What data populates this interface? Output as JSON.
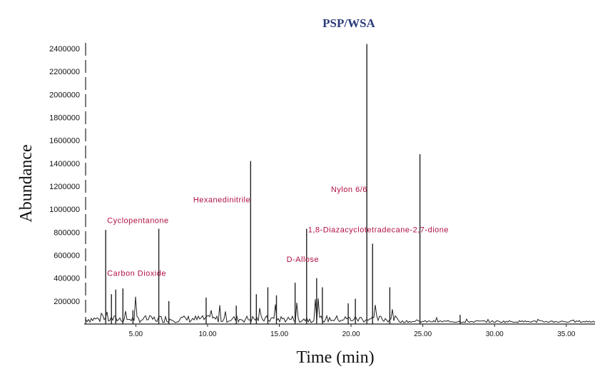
{
  "chart_data": {
    "type": "line",
    "title": "PSP/WSA",
    "xlabel": "Time (min)",
    "ylabel": "Abundance",
    "xlim": [
      1.5,
      37.0
    ],
    "ylim": [
      0,
      2450000
    ],
    "x_ticks": [
      "5.00",
      "10.00",
      "15.00",
      "20.00",
      "25.00",
      "30.00",
      "35.00"
    ],
    "y_ticks": [
      "200000",
      "400000",
      "600000",
      "800000",
      "1000000",
      "1200000",
      "1400000",
      "1600000",
      "1800000",
      "2000000",
      "2200000",
      "2400000"
    ],
    "peaks": [
      {
        "x": 2.9,
        "y": 820000
      },
      {
        "x": 3.3,
        "y": 260000
      },
      {
        "x": 3.6,
        "y": 300000
      },
      {
        "x": 4.1,
        "y": 310000
      },
      {
        "x": 4.8,
        "y": 120000
      },
      {
        "x": 6.6,
        "y": 830000
      },
      {
        "x": 7.3,
        "y": 200000
      },
      {
        "x": 9.9,
        "y": 230000
      },
      {
        "x": 12.0,
        "y": 160000
      },
      {
        "x": 13.0,
        "y": 1420000
      },
      {
        "x": 13.4,
        "y": 260000
      },
      {
        "x": 14.2,
        "y": 320000
      },
      {
        "x": 14.8,
        "y": 250000
      },
      {
        "x": 16.1,
        "y": 360000
      },
      {
        "x": 16.9,
        "y": 830000
      },
      {
        "x": 17.6,
        "y": 400000
      },
      {
        "x": 18.0,
        "y": 320000
      },
      {
        "x": 19.8,
        "y": 180000
      },
      {
        "x": 20.3,
        "y": 220000
      },
      {
        "x": 21.1,
        "y": 2440000
      },
      {
        "x": 21.5,
        "y": 700000
      },
      {
        "x": 22.7,
        "y": 320000
      },
      {
        "x": 24.8,
        "y": 1480000
      },
      {
        "x": 27.6,
        "y": 80000
      }
    ],
    "annotations": [
      {
        "text": "Carbon Dioxide",
        "x": 3.0,
        "y": 420000
      },
      {
        "text": "Cyclopentanone",
        "x": 3.0,
        "y": 880000
      },
      {
        "text": "Hexanedinitrile",
        "x": 9.0,
        "y": 1060000
      },
      {
        "text": "D-Allose",
        "x": 15.5,
        "y": 540000
      },
      {
        "text": "Nylon 6/6",
        "x": 18.6,
        "y": 1150000
      },
      {
        "text": "1,8-Diazacyclotetradecane-2,7-dione",
        "x": 17.0,
        "y": 800000
      }
    ]
  }
}
